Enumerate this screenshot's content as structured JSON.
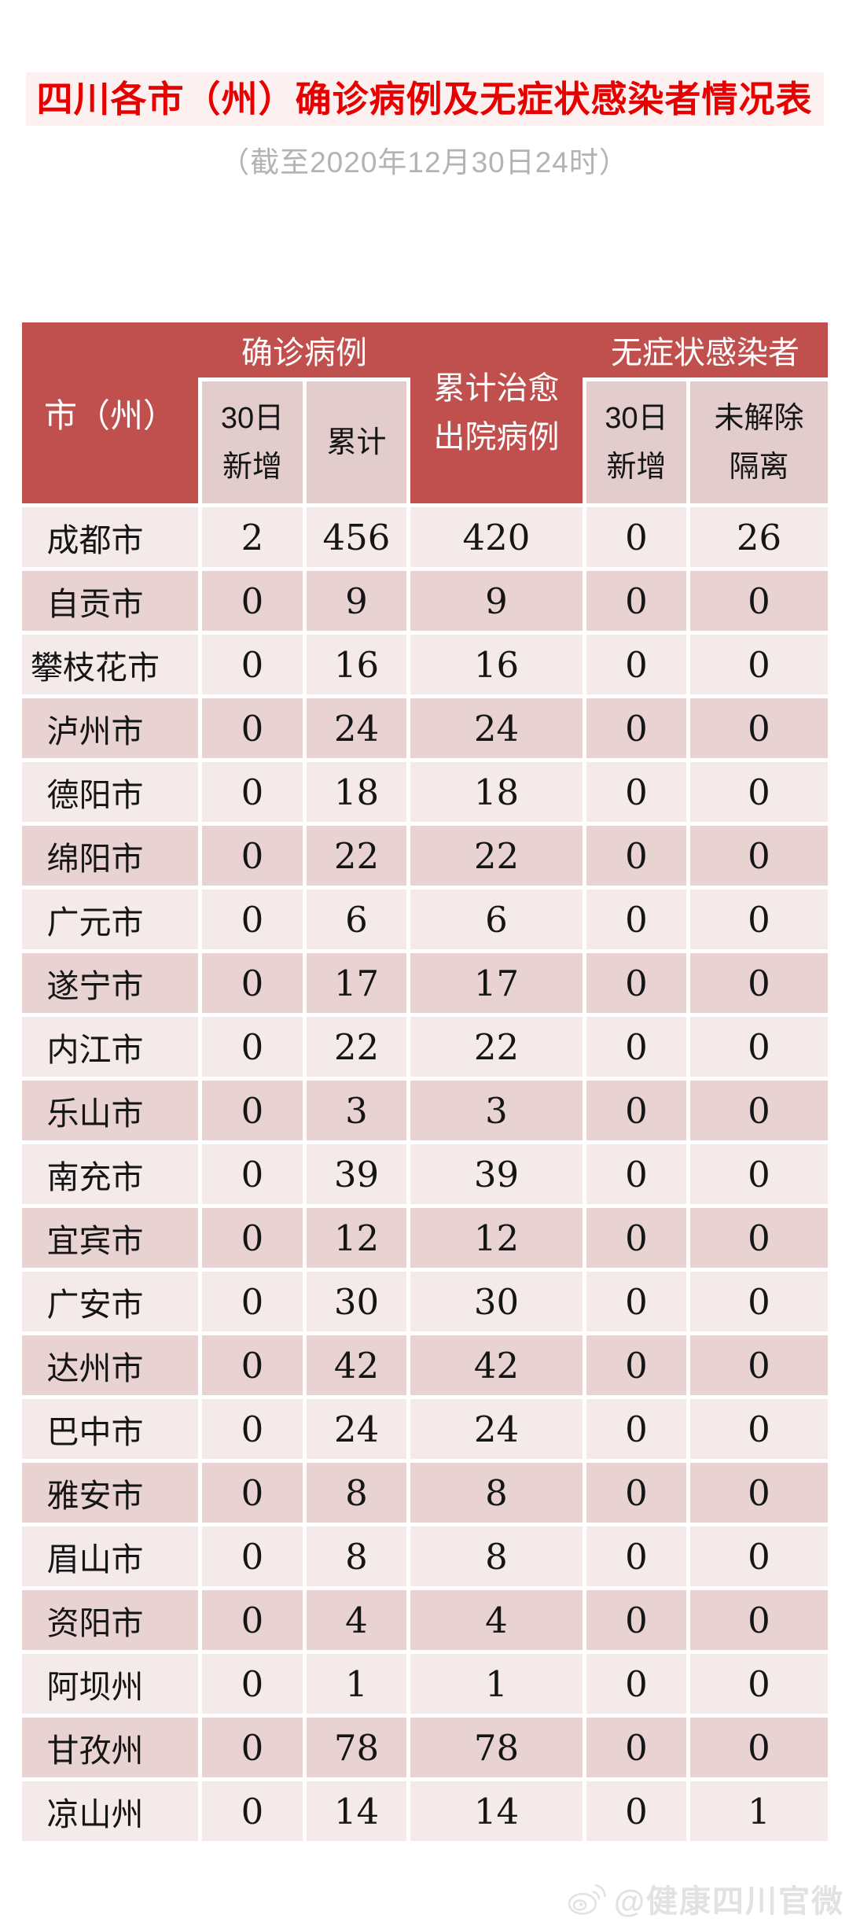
{
  "title": "四川各市（州）确诊病例及无症状感染者情况表",
  "subtitle": "（截至2020年12月30日24时）",
  "watermark": {
    "handle": "@健康四川官微",
    "icon": "weibo-icon"
  },
  "colors": {
    "header_red": "#c0504d",
    "subheader_pink": "#e2cccc",
    "row_light": "#f5eaea",
    "row_dark": "#e9d2d2",
    "title_red": "#e60000",
    "title_bg": "#fdf0f0",
    "subtitle_gray": "#b5b2b2",
    "text_dark": "#151515",
    "watermark_gray": "#e4e1e1"
  },
  "table": {
    "header": {
      "region": "市（州）",
      "confirmed_group": "确诊病例",
      "cured_line1": "累计治愈",
      "cured_line2": "出院病例",
      "asym_group": "无症状感染者",
      "confirmed_new_line1": "30日",
      "confirmed_new_line2": "新增",
      "confirmed_total": "累计",
      "asym_new_line1": "30日",
      "asym_new_line2": "新增",
      "unreleased_line1": "未解除",
      "unreleased_line2": "隔离"
    }
  },
  "chart_data": {
    "type": "table",
    "title": "四川各市（州）确诊病例及无症状感染者情况表",
    "subtitle": "（截至2020年12月30日24时）",
    "columns": [
      "市（州）",
      "确诊病例 30日新增",
      "确诊病例 累计",
      "累计治愈出院病例",
      "无症状感染者 30日新增",
      "无症状感染者 未解除隔离"
    ],
    "rows": [
      [
        "成都市",
        2,
        456,
        420,
        0,
        26
      ],
      [
        "自贡市",
        0,
        9,
        9,
        0,
        0
      ],
      [
        "攀枝花市",
        0,
        16,
        16,
        0,
        0
      ],
      [
        "泸州市",
        0,
        24,
        24,
        0,
        0
      ],
      [
        "德阳市",
        0,
        18,
        18,
        0,
        0
      ],
      [
        "绵阳市",
        0,
        22,
        22,
        0,
        0
      ],
      [
        "广元市",
        0,
        6,
        6,
        0,
        0
      ],
      [
        "遂宁市",
        0,
        17,
        17,
        0,
        0
      ],
      [
        "内江市",
        0,
        22,
        22,
        0,
        0
      ],
      [
        "乐山市",
        0,
        3,
        3,
        0,
        0
      ],
      [
        "南充市",
        0,
        39,
        39,
        0,
        0
      ],
      [
        "宜宾市",
        0,
        12,
        12,
        0,
        0
      ],
      [
        "广安市",
        0,
        30,
        30,
        0,
        0
      ],
      [
        "达州市",
        0,
        42,
        42,
        0,
        0
      ],
      [
        "巴中市",
        0,
        24,
        24,
        0,
        0
      ],
      [
        "雅安市",
        0,
        8,
        8,
        0,
        0
      ],
      [
        "眉山市",
        0,
        8,
        8,
        0,
        0
      ],
      [
        "资阳市",
        0,
        4,
        4,
        0,
        0
      ],
      [
        "阿坝州",
        0,
        1,
        1,
        0,
        0
      ],
      [
        "甘孜州",
        0,
        78,
        78,
        0,
        0
      ],
      [
        "凉山州",
        0,
        14,
        14,
        0,
        1
      ]
    ]
  }
}
